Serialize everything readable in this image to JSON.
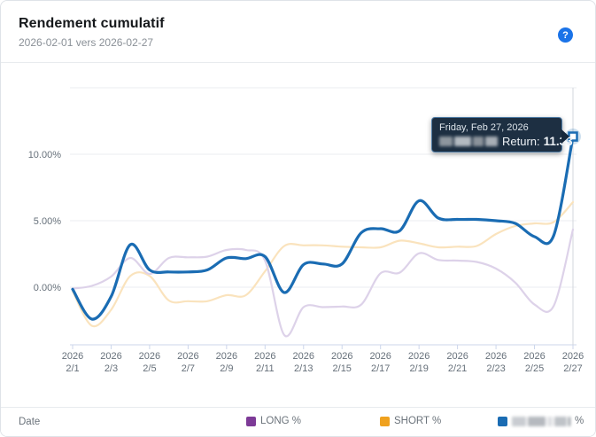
{
  "header": {
    "title": "Rendement cumulatif",
    "subtitle": "2026-02-01 vers 2026-02-27",
    "help_icon": "?"
  },
  "colors": {
    "accent_blue": "#1a6cb3",
    "long_purple": "#7d3a97",
    "short_orange": "#efa11f",
    "long_line": "#ddd2e9",
    "short_line": "#fae3bd",
    "help_icon_bg": "#1a73e8",
    "tooltip_bg": "#16283c",
    "gridline": "#ebedf0",
    "axis_line": "#ccd6eb",
    "crosshair": "#d3d7dc",
    "axis_text": "#66707a"
  },
  "chart_data": {
    "type": "line",
    "title": "Rendement cumulatif",
    "xlabel": "Date",
    "ylabel": "",
    "x_year": "2026",
    "x_tick_labels": [
      "2/1",
      "2/3",
      "2/5",
      "2/7",
      "2/9",
      "2/11",
      "2/13",
      "2/15",
      "2/17",
      "2/19",
      "2/21",
      "2/23",
      "2/25",
      "2/27"
    ],
    "x_count": 27,
    "ylim": [
      -4.33,
      15
    ],
    "grid": true,
    "legend_position": "bottom",
    "y_gridline_values": [
      0,
      5,
      10,
      15
    ],
    "y_ticks": [
      {
        "value": 0,
        "label": "0.00%"
      },
      {
        "value": 5,
        "label": "5.00%"
      },
      {
        "value": 10,
        "label": "10.00%"
      }
    ],
    "series": [
      {
        "name": "LONG %",
        "redacted_name": false,
        "legend_color": "#7d3a97",
        "line_color": "#ddd2e9",
        "line_width": 2.2,
        "values": [
          -0.1,
          0.1,
          0.8,
          2.2,
          1.0,
          2.2,
          2.25,
          2.3,
          2.8,
          2.8,
          2.0,
          -3.6,
          -1.5,
          -1.5,
          -1.45,
          -1.3,
          1.05,
          1.1,
          2.55,
          2.05,
          2.0,
          1.9,
          1.4,
          0.35,
          -1.3,
          -1.4,
          4.35
        ]
      },
      {
        "name": "SHORT %",
        "redacted_name": false,
        "legend_color": "#efa11f",
        "line_color": "#fae3bd",
        "line_width": 2.2,
        "values": [
          -0.3,
          -2.9,
          -1.7,
          0.85,
          0.85,
          -1.0,
          -1.05,
          -1.05,
          -0.6,
          -0.6,
          1.2,
          3.1,
          3.15,
          3.15,
          3.05,
          3.0,
          3.0,
          3.5,
          3.3,
          3.0,
          3.05,
          3.1,
          4.0,
          4.6,
          4.8,
          4.9,
          6.4
        ]
      },
      {
        "name": "%",
        "redacted_name": true,
        "legend_color": "#1a6cb3",
        "line_color": "#1a6cb3",
        "line_width": 3.2,
        "values": [
          -0.15,
          -2.4,
          -0.7,
          3.2,
          1.3,
          1.15,
          1.15,
          1.3,
          2.2,
          2.15,
          2.3,
          -0.4,
          1.7,
          1.75,
          1.75,
          4.1,
          4.4,
          4.25,
          6.5,
          5.2,
          5.1,
          5.1,
          5.0,
          4.8,
          3.8,
          3.9,
          11.33
        ]
      }
    ],
    "hovered_point": {
      "x_label": "2/27",
      "value": 11.33
    }
  },
  "tooltip": {
    "date_line": "Friday, Feb 27, 2026",
    "return_label": "Return:",
    "return_value": "11.33"
  },
  "footer": {
    "axis_label": "Date",
    "legend": [
      {
        "label": "LONG %",
        "color": "#7d3a97",
        "redacted": false
      },
      {
        "label": "SHORT %",
        "color": "#efa11f",
        "redacted": false
      },
      {
        "label": "%",
        "color": "#1a6cb3",
        "redacted": true
      }
    ]
  }
}
